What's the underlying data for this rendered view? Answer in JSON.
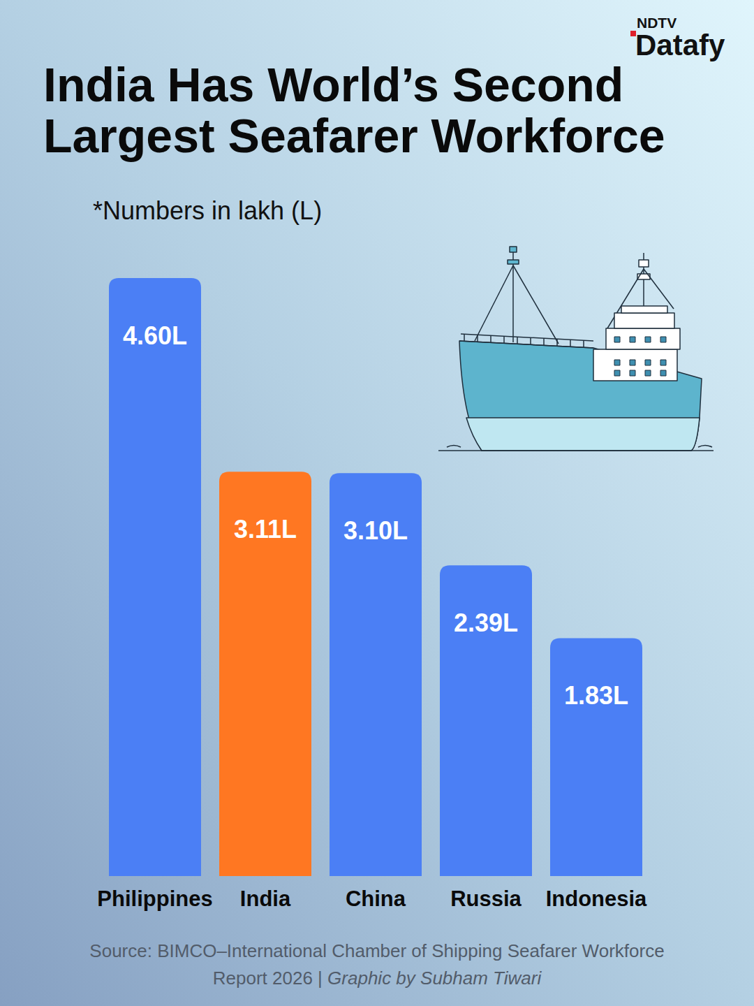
{
  "chart_data": {
    "type": "bar",
    "title": "India Has World’s Second Largest Seafarer Workforce",
    "subtitle": "*Numbers in lakh (L)",
    "categories": [
      "Philippines",
      "India",
      "China",
      "Russia",
      "Indonesia"
    ],
    "values": [
      4.6,
      3.11,
      3.1,
      2.39,
      1.83
    ],
    "value_labels": [
      "4.60L",
      "3.11L",
      "3.10L",
      "2.39L",
      "1.83L"
    ],
    "colors": [
      "#4b7ff5",
      "#ff7722",
      "#4b7ff5",
      "#4b7ff5",
      "#4b7ff5"
    ],
    "ylim": [
      0,
      4.6
    ],
    "data_labels": true,
    "tick_labels": "x",
    "grid": false,
    "source": "Source: BIMCO–International Chamber of Shipping Seafarer Workforce Report 2026 |",
    "credit": "Graphic by Subham Tiwari",
    "brand": [
      "NDTV",
      "Datafy"
    ]
  }
}
